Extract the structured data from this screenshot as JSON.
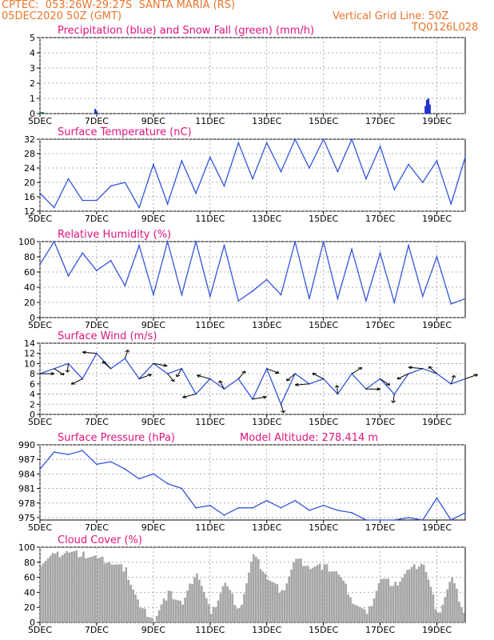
{
  "header": {
    "station": "CPTEC:  053:26W-29:27S  SANTA MARIA (RS)",
    "run": "05DEC2020 50Z (GMT)",
    "grid_note": "Vertical Grid Line: 50Z",
    "code": "TQ0126L028",
    "model_altitude": "Model Altitude: 278.414 m"
  },
  "colors": {
    "header": "#e8762c",
    "title": "#e0137f",
    "line": "#3355dd",
    "precip": "#2233cc",
    "snow": "#22aa22",
    "cloud": "#a6a6a6",
    "arrow": "#000000"
  },
  "chart_data": [
    {
      "type": "bar",
      "title": "Precipitation (blue) and Snow Fall (green) (mm/h)",
      "x_ticks": [
        "5DEC",
        "7DEC",
        "9DEC",
        "11DEC",
        "13DEC",
        "15DEC",
        "17DEC",
        "19DEC"
      ],
      "xlim": [
        0,
        15
      ],
      "ylim": [
        0,
        5
      ],
      "yticks": [
        0,
        1,
        2,
        3,
        4,
        5
      ],
      "series": [
        {
          "name": "Precipitation",
          "x": [
            0.1,
            1.95,
            2.0,
            4.6,
            7.4,
            13.6,
            13.65,
            13.7,
            13.75
          ],
          "values": [
            0.1,
            0.3,
            0.15,
            0.05,
            0.05,
            0.5,
            0.9,
            1.0,
            0.6
          ]
        },
        {
          "name": "Snow Fall",
          "x": [
            0.05,
            0.2
          ],
          "values": [
            0.1,
            0.05
          ]
        }
      ]
    },
    {
      "type": "line",
      "title": "Surface Temperature (nC)",
      "x_ticks": [
        "5DEC",
        "7DEC",
        "9DEC",
        "11DEC",
        "13DEC",
        "15DEC",
        "17DEC",
        "19DEC"
      ],
      "xlim": [
        0,
        15
      ],
      "ylim": [
        12,
        32
      ],
      "yticks": [
        12,
        16,
        20,
        24,
        28,
        32
      ],
      "x": [
        0,
        0.5,
        1,
        1.5,
        2,
        2.5,
        3,
        3.5,
        4,
        4.5,
        5,
        5.5,
        6,
        6.5,
        7,
        7.5,
        8,
        8.5,
        9,
        9.5,
        10,
        10.5,
        11,
        11.5,
        12,
        12.5,
        13,
        13.5,
        14,
        14.5,
        15
      ],
      "values": [
        17,
        13,
        21,
        15,
        15,
        19,
        20,
        13,
        25,
        14,
        26,
        17,
        27,
        19,
        31,
        21,
        31,
        23,
        32,
        24,
        32,
        23,
        32,
        21,
        30,
        18,
        25,
        20,
        26,
        14,
        27
      ]
    },
    {
      "type": "line",
      "title": "Relative Humidity (%)",
      "x_ticks": [
        "5DEC",
        "7DEC",
        "9DEC",
        "11DEC",
        "13DEC",
        "15DEC",
        "17DEC",
        "19DEC"
      ],
      "xlim": [
        0,
        15
      ],
      "ylim": [
        0,
        100
      ],
      "yticks": [
        0,
        20,
        40,
        60,
        80,
        100
      ],
      "x": [
        0,
        0.5,
        1,
        1.5,
        2,
        2.5,
        3,
        3.5,
        4,
        4.5,
        5,
        5.5,
        6,
        6.5,
        7,
        7.5,
        8,
        8.5,
        9,
        9.5,
        10,
        10.5,
        11,
        11.5,
        12,
        12.5,
        13,
        13.5,
        14,
        14.5,
        15
      ],
      "values": [
        70,
        100,
        55,
        85,
        62,
        75,
        42,
        95,
        30,
        100,
        30,
        100,
        28,
        95,
        22,
        35,
        50,
        30,
        100,
        25,
        100,
        25,
        90,
        22,
        85,
        20,
        95,
        28,
        80,
        18,
        25
      ]
    },
    {
      "type": "line",
      "title": "Surface Wind (m/s)",
      "x_ticks": [
        "5DEC",
        "7DEC",
        "9DEC",
        "11DEC",
        "13DEC",
        "15DEC",
        "17DEC",
        "19DEC"
      ],
      "xlim": [
        0,
        15
      ],
      "ylim": [
        0,
        14
      ],
      "yticks": [
        0,
        2,
        4,
        6,
        8,
        10,
        12,
        14
      ],
      "x": [
        0,
        0.5,
        1,
        1.5,
        2,
        2.5,
        3,
        3.5,
        4,
        4.5,
        5,
        5.5,
        6,
        6.5,
        7,
        7.5,
        8,
        8.5,
        9,
        9.5,
        10,
        10.5,
        11,
        11.5,
        12,
        12.5,
        13,
        13.5,
        14,
        14.5,
        15
      ],
      "values": [
        8,
        9,
        10,
        7,
        12,
        9,
        11,
        7,
        10,
        8,
        9,
        4,
        7,
        5,
        7,
        3,
        9,
        2,
        8,
        6,
        7,
        4,
        8,
        5,
        7,
        4,
        8,
        9,
        8,
        6,
        7
      ]
    },
    {
      "type": "line",
      "title": "Surface Pressure (hPa)",
      "x_ticks": [
        "5DEC",
        "7DEC",
        "9DEC",
        "11DEC",
        "13DEC",
        "15DEC",
        "17DEC",
        "19DEC"
      ],
      "xlim": [
        0,
        15
      ],
      "ylim": [
        974.5,
        990
      ],
      "yticks": [
        975,
        978,
        981,
        984,
        987,
        990
      ],
      "x": [
        0,
        0.5,
        1,
        1.5,
        2,
        2.5,
        3,
        3.5,
        4,
        4.5,
        5,
        5.5,
        6,
        6.5,
        7,
        7.5,
        8,
        8.5,
        9,
        9.5,
        10,
        10.5,
        11,
        11.5,
        12,
        12.5,
        13,
        13.5,
        14,
        14.5,
        15
      ],
      "values": [
        985,
        988.5,
        988,
        988.8,
        986,
        986.5,
        985,
        983,
        984,
        982,
        981,
        977,
        977.5,
        975.5,
        977,
        977,
        978.5,
        977,
        978.5,
        976.5,
        977.5,
        976.5,
        976,
        974,
        974,
        974,
        975,
        973.5,
        979,
        974,
        976
      ]
    },
    {
      "type": "bar",
      "title": "Cloud Cover (%)",
      "x_ticks": [
        "5DEC",
        "7DEC",
        "9DEC",
        "11DEC",
        "13DEC",
        "15DEC",
        "17DEC",
        "19DEC"
      ],
      "xlim": [
        0,
        15
      ],
      "ylim": [
        0,
        100
      ],
      "yticks": [
        0,
        20,
        40,
        60,
        80,
        100
      ],
      "x": [
        0,
        0.5,
        1,
        1.5,
        2,
        2.5,
        3,
        3.5,
        4,
        4.5,
        5,
        5.5,
        6,
        6.5,
        7,
        7.5,
        8,
        8.5,
        9,
        9.5,
        10,
        10.5,
        11,
        11.5,
        12,
        12.5,
        13,
        13.5,
        14,
        14.5,
        15
      ],
      "values": [
        80,
        90,
        95,
        90,
        85,
        80,
        70,
        20,
        5,
        40,
        25,
        70,
        10,
        55,
        15,
        90,
        60,
        40,
        85,
        75,
        75,
        65,
        30,
        10,
        60,
        50,
        70,
        80,
        10,
        60,
        5
      ]
    }
  ]
}
